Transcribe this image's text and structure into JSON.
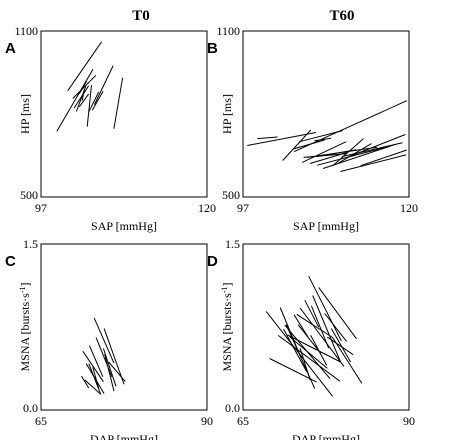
{
  "column_titles": [
    "T0",
    "T60"
  ],
  "chart_data": [
    {
      "panel": "A",
      "type": "line",
      "xlabel": "SAP [mmHg]",
      "ylabel": "HP [ms]",
      "xlim": [
        97,
        120
      ],
      "ylim": [
        500,
        1100
      ],
      "xticks": [
        "97",
        "120"
      ],
      "yticks": [
        "500",
        "1100"
      ],
      "series": [
        {
          "x": [
            99.2,
            104.2
          ],
          "y": [
            738,
            962
          ]
        },
        {
          "x": [
            100.7,
            105.4
          ],
          "y": [
            884,
            1061
          ]
        },
        {
          "x": [
            101.4,
            104.6
          ],
          "y": [
            856,
            940
          ]
        },
        {
          "x": [
            101.6,
            103.6
          ],
          "y": [
            822,
            902
          ]
        },
        {
          "x": [
            101.9,
            103.2
          ],
          "y": [
            809,
            900
          ]
        },
        {
          "x": [
            102.3,
            103.3
          ],
          "y": [
            873,
            918
          ]
        },
        {
          "x": [
            102.3,
            103.6
          ],
          "y": [
            826,
            872
          ]
        },
        {
          "x": [
            102.7,
            103.0
          ],
          "y": [
            848,
            887
          ]
        },
        {
          "x": [
            103.4,
            104.0
          ],
          "y": [
            754,
            904
          ]
        },
        {
          "x": [
            103.6,
            105.0
          ],
          "y": [
            806,
            880
          ]
        },
        {
          "x": [
            104.1,
            105.6
          ],
          "y": [
            813,
            882
          ]
        },
        {
          "x": [
            104.4,
            107.0
          ],
          "y": [
            834,
            975
          ]
        },
        {
          "x": [
            107.1,
            108.3
          ],
          "y": [
            747,
            931
          ]
        }
      ]
    },
    {
      "panel": "B",
      "type": "line",
      "xlabel": "SAP [mmHg]",
      "ylabel": "HP [ms]",
      "xlim": [
        97,
        120
      ],
      "ylim": [
        500,
        1100
      ],
      "xticks": [
        "97",
        "120"
      ],
      "yticks": [
        "500",
        "1100"
      ],
      "series": [
        {
          "x": [
            97.6,
            107.1
          ],
          "y": [
            686,
            733
          ]
        },
        {
          "x": [
            99.0,
            101.8
          ],
          "y": [
            711,
            717
          ]
        },
        {
          "x": [
            102.5,
            106.4
          ],
          "y": [
            632,
            742
          ]
        },
        {
          "x": [
            103.9,
            108.3
          ],
          "y": [
            673,
            706
          ]
        },
        {
          "x": [
            104.1,
            119.7
          ],
          "y": [
            664,
            848
          ]
        },
        {
          "x": [
            104.8,
            110.8
          ],
          "y": [
            700,
            740
          ]
        },
        {
          "x": [
            105.2,
            111.3
          ],
          "y": [
            625,
            700
          ]
        },
        {
          "x": [
            105.4,
            111.3
          ],
          "y": [
            643,
            656
          ]
        },
        {
          "x": [
            105.9,
            115.6
          ],
          "y": [
            643,
            680
          ]
        },
        {
          "x": [
            106.3,
            111.4
          ],
          "y": [
            621,
            661
          ]
        },
        {
          "x": [
            106.9,
            109.2
          ],
          "y": [
            703,
            712
          ]
        },
        {
          "x": [
            107.2,
            112.7
          ],
          "y": [
            646,
            671
          ]
        },
        {
          "x": [
            107.3,
            117.2
          ],
          "y": [
            615,
            683
          ]
        },
        {
          "x": [
            108.1,
            118.2
          ],
          "y": [
            603,
            691
          ]
        },
        {
          "x": [
            109.4,
            113.7
          ],
          "y": [
            612,
            711
          ]
        },
        {
          "x": [
            110.2,
            114.8
          ],
          "y": [
            622,
            693
          ]
        },
        {
          "x": [
            110.5,
            119.6
          ],
          "y": [
            592,
            652
          ]
        },
        {
          "x": [
            110.7,
            119.1
          ],
          "y": [
            646,
            696
          ]
        },
        {
          "x": [
            111.5,
            119.5
          ],
          "y": [
            644,
            726
          ]
        },
        {
          "x": [
            113.3,
            119.7
          ],
          "y": [
            613,
            670
          ]
        }
      ]
    },
    {
      "panel": "C",
      "type": "line",
      "xlabel": "DAP [mmHg]",
      "ylabel": "MSNA [bursts·s⁻¹]",
      "xlim": [
        65,
        90
      ],
      "ylim": [
        0.0,
        1.5
      ],
      "xticks": [
        "65",
        "90"
      ],
      "yticks": [
        "0.0",
        "1.5"
      ],
      "series": [
        {
          "x": [
            71.1,
            72.2
          ],
          "y": [
            0.306,
            0.198
          ]
        },
        {
          "x": [
            71.3,
            74.4
          ],
          "y": [
            0.531,
            0.256
          ]
        },
        {
          "x": [
            71.6,
            73.9
          ],
          "y": [
            0.271,
            0.148
          ]
        },
        {
          "x": [
            71.8,
            74.5
          ],
          "y": [
            0.419,
            0.148
          ]
        },
        {
          "x": [
            72.2,
            74.0
          ],
          "y": [
            0.419,
            0.14
          ]
        },
        {
          "x": [
            72.3,
            74.3
          ],
          "y": [
            0.581,
            0.301
          ]
        },
        {
          "x": [
            72.8,
            73.7
          ],
          "y": [
            0.387,
            0.191
          ]
        },
        {
          "x": [
            73.0,
            76.0
          ],
          "y": [
            0.833,
            0.423
          ]
        },
        {
          "x": [
            73.3,
            75.7
          ],
          "y": [
            0.654,
            0.298
          ]
        },
        {
          "x": [
            74.4,
            76.3
          ],
          "y": [
            0.556,
            0.213
          ]
        },
        {
          "x": [
            74.5,
            77.5
          ],
          "y": [
            0.737,
            0.233
          ]
        },
        {
          "x": [
            74.6,
            76.0
          ],
          "y": [
            0.504,
            0.171
          ]
        },
        {
          "x": [
            75.2,
            77.7
          ],
          "y": [
            0.434,
            0.256
          ]
        }
      ]
    },
    {
      "panel": "D",
      "type": "line",
      "xlabel": "DAP [mmHg]",
      "ylabel": "MSNA [bursts·s⁻¹]",
      "xlim": [
        65,
        90
      ],
      "ylim": [
        0.0,
        1.5
      ],
      "xticks": [
        "65",
        "90"
      ],
      "yticks": [
        "0.0",
        "1.5"
      ],
      "series": [
        {
          "x": [
            68.5,
            78.5
          ],
          "y": [
            0.891,
            0.124
          ]
        },
        {
          "x": [
            69.0,
            76.1
          ],
          "y": [
            0.465,
            0.252
          ]
        },
        {
          "x": [
            70.3,
            79.6
          ],
          "y": [
            0.674,
            0.26
          ]
        },
        {
          "x": [
            70.6,
            73.6
          ],
          "y": [
            0.926,
            0.492
          ]
        },
        {
          "x": [
            71.1,
            74.6
          ],
          "y": [
            0.732,
            0.345
          ]
        },
        {
          "x": [
            71.3,
            78.1
          ],
          "y": [
            0.767,
            0.283
          ]
        },
        {
          "x": [
            71.5,
            75.8
          ],
          "y": [
            0.771,
            0.194
          ]
        },
        {
          "x": [
            71.7,
            79.7
          ],
          "y": [
            0.678,
            0.434
          ]
        },
        {
          "x": [
            72.1,
            77.7
          ],
          "y": [
            0.659,
            0.376
          ]
        },
        {
          "x": [
            72.7,
            74.8
          ],
          "y": [
            0.86,
            0.659
          ]
        },
        {
          "x": [
            73.1,
            78.5
          ],
          "y": [
            0.864,
            0.655
          ]
        },
        {
          "x": [
            73.3,
            76.7
          ],
          "y": [
            0.771,
            0.512
          ]
        },
        {
          "x": [
            73.6,
            75.1
          ],
          "y": [
            0.558,
            0.271
          ]
        },
        {
          "x": [
            73.6,
            80.2
          ],
          "y": [
            0.922,
            0.395
          ]
        },
        {
          "x": [
            74.3,
            76.4
          ],
          "y": [
            0.992,
            0.748
          ]
        },
        {
          "x": [
            74.9,
            79.8
          ],
          "y": [
            1.209,
            0.624
          ]
        },
        {
          "x": [
            75.2,
            77.6
          ],
          "y": [
            0.674,
            0.403
          ]
        },
        {
          "x": [
            75.3,
            77.9
          ],
          "y": [
            0.942,
            0.558
          ]
        },
        {
          "x": [
            75.5,
            79.7
          ],
          "y": [
            1.035,
            0.434
          ]
        },
        {
          "x": [
            76.4,
            82.1
          ],
          "y": [
            1.108,
            0.643
          ]
        },
        {
          "x": [
            77.3,
            80.6
          ],
          "y": [
            0.872,
            0.62
          ]
        },
        {
          "x": [
            77.7,
            81.6
          ],
          "y": [
            0.659,
            0.5
          ]
        },
        {
          "x": [
            78.3,
            81.2
          ],
          "y": [
            0.736,
            0.434
          ]
        },
        {
          "x": [
            78.5,
            82.9
          ],
          "y": [
            0.655,
            0.24
          ]
        }
      ]
    }
  ]
}
